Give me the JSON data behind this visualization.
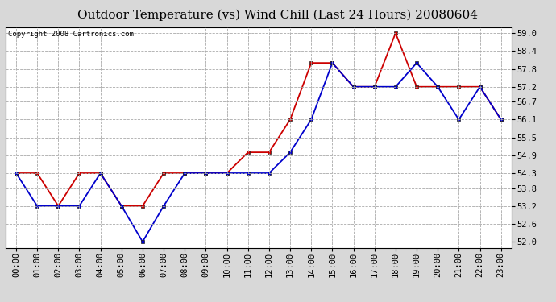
{
  "title": "Outdoor Temperature (vs) Wind Chill (Last 24 Hours) 20080604",
  "copyright": "Copyright 2008 Cartronics.com",
  "x_labels": [
    "00:00",
    "01:00",
    "02:00",
    "03:00",
    "04:00",
    "05:00",
    "06:00",
    "07:00",
    "08:00",
    "09:00",
    "10:00",
    "11:00",
    "12:00",
    "13:00",
    "14:00",
    "15:00",
    "16:00",
    "17:00",
    "18:00",
    "19:00",
    "20:00",
    "21:00",
    "22:00",
    "23:00"
  ],
  "y_ticks": [
    52.0,
    52.6,
    53.2,
    53.8,
    54.3,
    54.9,
    55.5,
    56.1,
    56.7,
    57.2,
    57.8,
    58.4,
    59.0
  ],
  "ylim": [
    51.8,
    59.2
  ],
  "red_data": [
    54.3,
    54.3,
    53.2,
    54.3,
    54.3,
    53.2,
    53.2,
    54.3,
    54.3,
    54.3,
    54.3,
    55.0,
    55.0,
    56.1,
    58.0,
    58.0,
    57.2,
    57.2,
    59.0,
    57.2,
    57.2,
    57.2,
    57.2,
    56.1
  ],
  "blue_data": [
    54.3,
    53.2,
    53.2,
    53.2,
    54.3,
    53.2,
    52.0,
    53.2,
    54.3,
    54.3,
    54.3,
    54.3,
    54.3,
    55.0,
    56.1,
    58.0,
    57.2,
    57.2,
    57.2,
    58.0,
    57.2,
    56.1,
    57.2,
    56.1
  ],
  "red_color": "#cc0000",
  "blue_color": "#0000cc",
  "bg_color": "#d8d8d8",
  "plot_bg_color": "#ffffff",
  "grid_color": "#aaaaaa",
  "marker": "s",
  "marker_size": 3,
  "line_width": 1.3,
  "title_fontsize": 11,
  "tick_fontsize": 7.5,
  "copyright_fontsize": 6.5
}
